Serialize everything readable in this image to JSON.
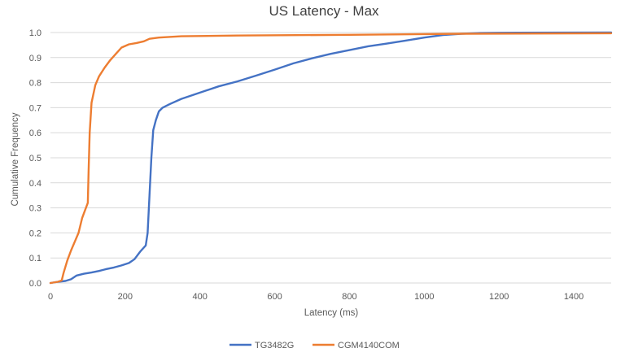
{
  "colors": {
    "background": "#ffffff",
    "grid": "#d9d9d9",
    "text": "#595959",
    "title": "#404040",
    "series_tg3482g": "#4472c4",
    "series_cgm4140com": "#ed7d31"
  },
  "chart_data": {
    "type": "line",
    "title": "US Latency - Max",
    "xlabel": "Latency (ms)",
    "ylabel": "Cumulative Frequency",
    "xlim": [
      0,
      1500
    ],
    "ylim": [
      0,
      1.0
    ],
    "xticks": [
      0,
      200,
      400,
      600,
      800,
      1000,
      1200,
      1400
    ],
    "xtick_labels": [
      "0",
      "200",
      "400",
      "600",
      "800",
      "1000",
      "1200",
      "1400"
    ],
    "yticks": [
      0,
      0.1,
      0.2,
      0.3,
      0.4,
      0.5,
      0.6,
      0.7,
      0.8,
      0.9,
      1.0
    ],
    "ytick_labels": [
      "0.0",
      "0.1",
      "0.2",
      "0.3",
      "0.4",
      "0.5",
      "0.6",
      "0.7",
      "0.8",
      "0.9",
      "1.0"
    ],
    "grid": true,
    "legend_position": "bottom",
    "series": [
      {
        "name": "TG3482G",
        "color": "#4472c4",
        "points": [
          [
            0,
            0.0
          ],
          [
            20,
            0.005
          ],
          [
            40,
            0.008
          ],
          [
            55,
            0.015
          ],
          [
            70,
            0.03
          ],
          [
            90,
            0.037
          ],
          [
            110,
            0.042
          ],
          [
            130,
            0.048
          ],
          [
            150,
            0.056
          ],
          [
            170,
            0.062
          ],
          [
            190,
            0.07
          ],
          [
            210,
            0.08
          ],
          [
            225,
            0.095
          ],
          [
            240,
            0.125
          ],
          [
            255,
            0.15
          ],
          [
            260,
            0.2
          ],
          [
            265,
            0.35
          ],
          [
            270,
            0.5
          ],
          [
            275,
            0.61
          ],
          [
            282,
            0.65
          ],
          [
            290,
            0.685
          ],
          [
            300,
            0.7
          ],
          [
            320,
            0.715
          ],
          [
            350,
            0.735
          ],
          [
            380,
            0.75
          ],
          [
            400,
            0.76
          ],
          [
            450,
            0.785
          ],
          [
            500,
            0.805
          ],
          [
            550,
            0.828
          ],
          [
            600,
            0.852
          ],
          [
            650,
            0.877
          ],
          [
            700,
            0.897
          ],
          [
            750,
            0.915
          ],
          [
            800,
            0.93
          ],
          [
            850,
            0.945
          ],
          [
            900,
            0.956
          ],
          [
            950,
            0.968
          ],
          [
            1000,
            0.98
          ],
          [
            1050,
            0.99
          ],
          [
            1100,
            0.995
          ],
          [
            1150,
            0.998
          ],
          [
            1200,
            0.999
          ],
          [
            1500,
            1.0
          ]
        ]
      },
      {
        "name": "CGM4140COM",
        "color": "#ed7d31",
        "points": [
          [
            0,
            0.0
          ],
          [
            20,
            0.005
          ],
          [
            30,
            0.01
          ],
          [
            35,
            0.04
          ],
          [
            45,
            0.09
          ],
          [
            55,
            0.13
          ],
          [
            65,
            0.165
          ],
          [
            75,
            0.2
          ],
          [
            85,
            0.26
          ],
          [
            95,
            0.3
          ],
          [
            100,
            0.32
          ],
          [
            102,
            0.45
          ],
          [
            105,
            0.6
          ],
          [
            110,
            0.72
          ],
          [
            120,
            0.79
          ],
          [
            130,
            0.825
          ],
          [
            145,
            0.86
          ],
          [
            160,
            0.89
          ],
          [
            175,
            0.915
          ],
          [
            190,
            0.94
          ],
          [
            210,
            0.953
          ],
          [
            230,
            0.958
          ],
          [
            250,
            0.965
          ],
          [
            265,
            0.975
          ],
          [
            290,
            0.98
          ],
          [
            350,
            0.985
          ],
          [
            500,
            0.988
          ],
          [
            800,
            0.991
          ],
          [
            1100,
            0.995
          ],
          [
            1500,
            0.997
          ]
        ]
      }
    ]
  }
}
